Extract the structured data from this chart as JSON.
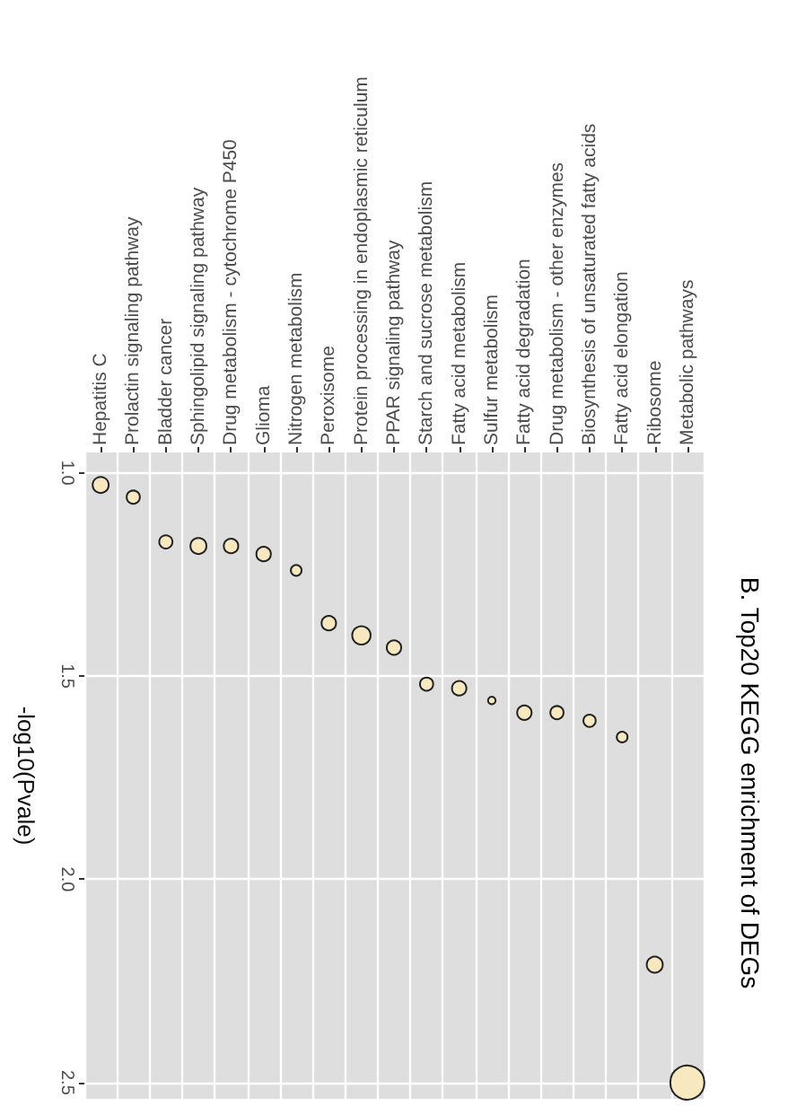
{
  "chart_data": {
    "type": "bubble",
    "title": "B. Top20 KEGG enrichment of DEGs",
    "ylabel": "-log10(Pvale)",
    "categories": [
      "Hepatitis C",
      "Prolactin signaling pathway",
      "Bladder cancer",
      "Sphingolipid signaling pathway",
      "Drug metabolism - cytochrome P450",
      "Glioma",
      "Nitrogen metabolism",
      "Peroxisome",
      "Protein processing in endoplasmic reticulum",
      "PPAR signaling pathway",
      "Starch and sucrose metabolism",
      "Fatty acid metabolism",
      "Sulfur metabolism",
      "Fatty acid degradation",
      "Drug metabolism - other enzymes",
      "Biosynthesis of unsaturated fatty acids",
      "Fatty acid elongation",
      "Ribosome",
      "Metabolic pathways"
    ],
    "values": [
      1.03,
      1.06,
      1.17,
      1.18,
      1.18,
      1.2,
      1.24,
      1.37,
      1.4,
      1.43,
      1.52,
      1.53,
      1.56,
      1.59,
      1.59,
      1.61,
      1.65,
      2.21,
      2.5
    ],
    "sizes": [
      0.22,
      0.15,
      0.15,
      0.22,
      0.18,
      0.18,
      0.1,
      0.18,
      0.29,
      0.18,
      0.15,
      0.18,
      0.05,
      0.18,
      0.15,
      0.13,
      0.1,
      0.22,
      1
    ],
    "color": "#f7e8c0",
    "ylim": [
      2.54,
      0.95
    ],
    "yticks": [
      {
        "value": 1,
        "label": "1.0"
      },
      {
        "value": 1.5,
        "label": "1.5"
      },
      {
        "value": 2,
        "label": "2.0"
      },
      {
        "value": 2.5,
        "label": "2.5"
      }
    ],
    "grid": true,
    "marker": "circle"
  }
}
